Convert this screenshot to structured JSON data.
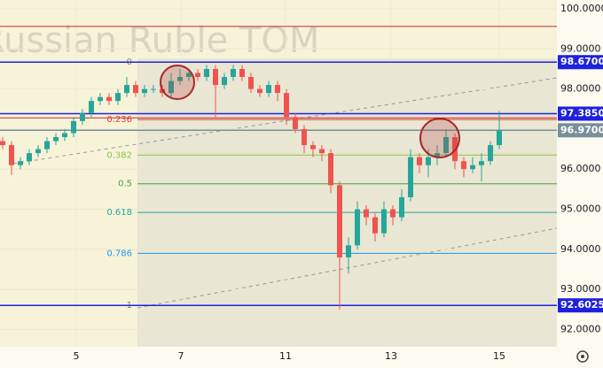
{
  "chart_data": {
    "type": "candlestick",
    "title": "Russian Ruble TOM",
    "x": [
      0,
      1,
      2,
      3,
      4,
      5,
      6,
      7,
      8,
      9,
      10,
      11,
      12,
      13,
      14,
      15,
      16,
      17,
      18,
      19,
      20,
      21,
      22,
      23,
      24,
      25,
      26,
      27,
      28,
      29,
      30,
      31,
      32,
      33,
      34,
      35,
      36,
      37,
      38,
      39,
      40,
      41,
      42,
      43,
      44,
      45,
      46,
      47,
      48,
      49,
      50,
      51,
      52,
      53,
      54,
      55,
      56
    ],
    "open": [
      96.7,
      96.6,
      96.1,
      96.2,
      96.4,
      96.5,
      96.7,
      96.8,
      96.9,
      97.2,
      97.4,
      97.7,
      97.8,
      97.7,
      97.9,
      98.1,
      97.9,
      98.0,
      98.0,
      97.9,
      98.2,
      98.3,
      98.4,
      98.3,
      98.5,
      98.1,
      98.3,
      98.5,
      98.3,
      98.0,
      97.9,
      98.1,
      97.9,
      97.3,
      97.0,
      96.6,
      96.5,
      96.4,
      95.6,
      93.8,
      94.1,
      95.0,
      94.8,
      94.4,
      95.0,
      94.8,
      95.3,
      96.3,
      96.1,
      96.3,
      96.4,
      96.8,
      96.2,
      96.0,
      96.1,
      96.2,
      96.6
    ],
    "high": [
      96.8,
      96.7,
      96.3,
      96.5,
      96.6,
      96.8,
      96.9,
      97.0,
      97.3,
      97.5,
      97.8,
      97.9,
      97.9,
      98.0,
      98.3,
      98.2,
      98.1,
      98.1,
      98.1,
      98.4,
      98.5,
      98.5,
      98.5,
      98.6,
      98.6,
      98.4,
      98.6,
      98.6,
      98.4,
      98.1,
      98.2,
      98.2,
      98.0,
      97.4,
      97.1,
      96.7,
      96.6,
      96.5,
      95.7,
      94.3,
      95.2,
      95.1,
      94.9,
      95.2,
      95.1,
      95.5,
      96.5,
      96.4,
      96.5,
      96.6,
      97.0,
      96.9,
      96.3,
      96.3,
      96.4,
      96.7,
      97.45
    ],
    "low": [
      96.5,
      95.85,
      96.0,
      96.1,
      96.3,
      96.4,
      96.6,
      96.7,
      96.8,
      97.1,
      97.3,
      97.6,
      97.6,
      97.6,
      97.8,
      97.8,
      97.8,
      97.9,
      97.8,
      97.8,
      98.1,
      98.2,
      98.2,
      98.2,
      97.3,
      98.0,
      98.2,
      98.2,
      97.9,
      97.8,
      97.8,
      97.7,
      97.1,
      96.9,
      96.4,
      96.3,
      96.2,
      95.4,
      92.5,
      93.4,
      94.0,
      94.6,
      94.2,
      94.3,
      94.6,
      94.7,
      95.2,
      95.9,
      95.8,
      96.1,
      96.3,
      96.0,
      95.8,
      95.9,
      95.7,
      96.1,
      96.5
    ],
    "close": [
      96.6,
      96.1,
      96.2,
      96.4,
      96.5,
      96.7,
      96.8,
      96.9,
      97.2,
      97.4,
      97.7,
      97.8,
      97.7,
      97.9,
      98.1,
      97.9,
      98.0,
      98.0,
      97.9,
      98.2,
      98.3,
      98.4,
      98.3,
      98.5,
      98.1,
      98.3,
      98.5,
      98.3,
      98.0,
      97.9,
      98.1,
      97.9,
      97.3,
      97.0,
      96.6,
      96.5,
      96.4,
      95.6,
      93.8,
      94.1,
      95.0,
      94.8,
      94.4,
      95.0,
      94.8,
      95.3,
      96.3,
      96.1,
      96.3,
      96.4,
      96.8,
      96.2,
      96.0,
      96.1,
      96.2,
      96.6,
      96.97
    ],
    "up_color": "#26a69a",
    "down_color": "#ef5350",
    "xlim": [
      -0.3,
      62.5
    ],
    "xticks": [
      {
        "value": 8.3,
        "label": "5"
      },
      {
        "value": 20.1,
        "label": "7"
      },
      {
        "value": 31.9,
        "label": "11"
      },
      {
        "value": 43.8,
        "label": "13"
      },
      {
        "value": 56,
        "label": "15"
      }
    ],
    "ylim": [
      91.57,
      100.22
    ],
    "yticks": [
      {
        "value": 92,
        "label": "92.0000"
      },
      {
        "value": 93,
        "label": "93.0000"
      },
      {
        "value": 94,
        "label": "94.0000"
      },
      {
        "value": 95,
        "label": "95.0000"
      },
      {
        "value": 96,
        "label": "96.0000"
      },
      {
        "value": 97,
        "label": "97.0000"
      },
      {
        "value": 98,
        "label": "98.0000"
      },
      {
        "value": 99,
        "label": "99.0000"
      },
      {
        "value": 100,
        "label": "100.0000"
      }
    ],
    "price_labels": [
      {
        "value": 98.67,
        "label": "98.6700",
        "color": "#1e22e0"
      },
      {
        "value": 97.385,
        "label": "97.3850",
        "color": "#1e22e0"
      },
      {
        "value": 96.97,
        "label": "96.9700",
        "color": "#78909c"
      },
      {
        "value": 92.6025,
        "label": "92.6025",
        "color": "#1e22e0"
      }
    ],
    "red_lines": [
      99.56,
      97.28
    ],
    "fib": {
      "start": 98.67,
      "end": 92.6025,
      "x_from": 15.2,
      "levels": [
        0,
        0.236,
        0.382,
        0.5,
        0.618,
        0.786,
        1
      ],
      "colors": [
        "#808080",
        "#e53935",
        "#8bc34a",
        "#43a047",
        "#26a69a",
        "#2196f3",
        "#808080"
      ]
    }
  }
}
